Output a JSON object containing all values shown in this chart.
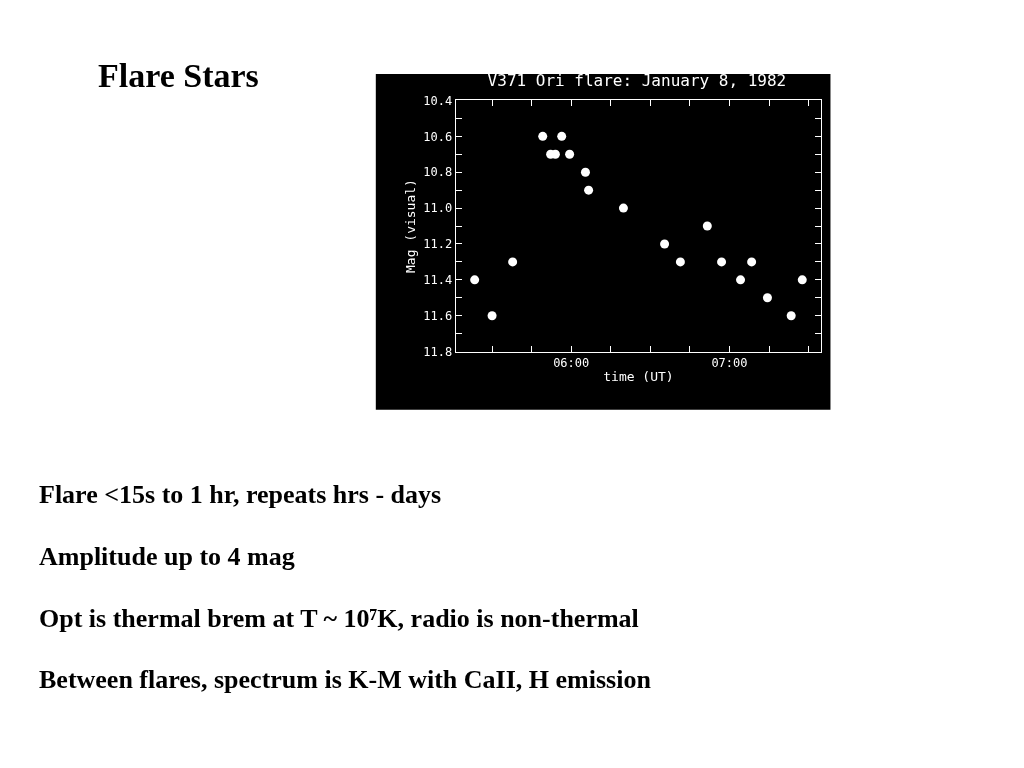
{
  "chart_data": {
    "type": "scatter",
    "title": "V371 Ori flare: January 8, 1982",
    "xlabel": "time (UT)",
    "ylabel": "Mag (visual)",
    "annotations": [
      "Flare Stars",
      "Flare <15s to 1 hr, repeats hrs - days",
      "Amplitude up to 4 mag",
      "Opt is thermal brem at T ~ 10⁷K, radio is non-thermal",
      "Between flares, spectrum is K-M with CaII, H emission"
    ],
    "x": [
      5.39,
      5.5,
      5.63,
      5.82,
      5.87,
      5.9,
      5.94,
      5.99,
      6.09,
      6.11,
      6.33,
      6.59,
      6.69,
      6.86,
      6.95,
      7.07,
      7.14,
      7.24,
      7.39,
      7.46
    ],
    "series": [
      {
        "color": "#ffffff",
        "values": [
          11.4,
          11.6,
          11.3,
          10.6,
          10.7,
          10.7,
          10.6,
          10.7,
          10.8,
          10.9,
          11.0,
          11.2,
          11.3,
          11.1,
          11.3,
          11.4,
          11.3,
          11.5,
          11.6,
          11.4
        ]
      }
    ],
    "xlim": [
      5.27,
      7.58
    ],
    "xticks": [
      {
        "value": 5.5,
        "label": null
      },
      {
        "value": 5.75,
        "label": null
      },
      {
        "value": 6,
        "label": "06:00"
      },
      {
        "value": 6.25,
        "label": null
      },
      {
        "value": 6.5,
        "label": null
      },
      {
        "value": 6.75,
        "label": null
      },
      {
        "value": 7,
        "label": "07:00"
      },
      {
        "value": 7.25,
        "label": null
      },
      {
        "value": 7.5,
        "label": null
      }
    ],
    "ylim": [
      11.8,
      10.4
    ],
    "yticks": [
      10.4,
      {
        "value": 10.5,
        "label": null
      },
      10.6,
      {
        "value": 10.7,
        "label": null
      },
      10.8,
      {
        "value": 10.9,
        "label": null
      },
      {
        "value": 11.0,
        "label": "11.0"
      },
      {
        "value": 11.1,
        "label": null
      },
      11.2,
      {
        "value": 11.3,
        "label": null
      },
      11.4,
      {
        "value": 11.5,
        "label": null
      },
      11.6,
      {
        "value": 11.7,
        "label": null
      },
      11.8
    ],
    "grid": false,
    "marker": "circle"
  }
}
